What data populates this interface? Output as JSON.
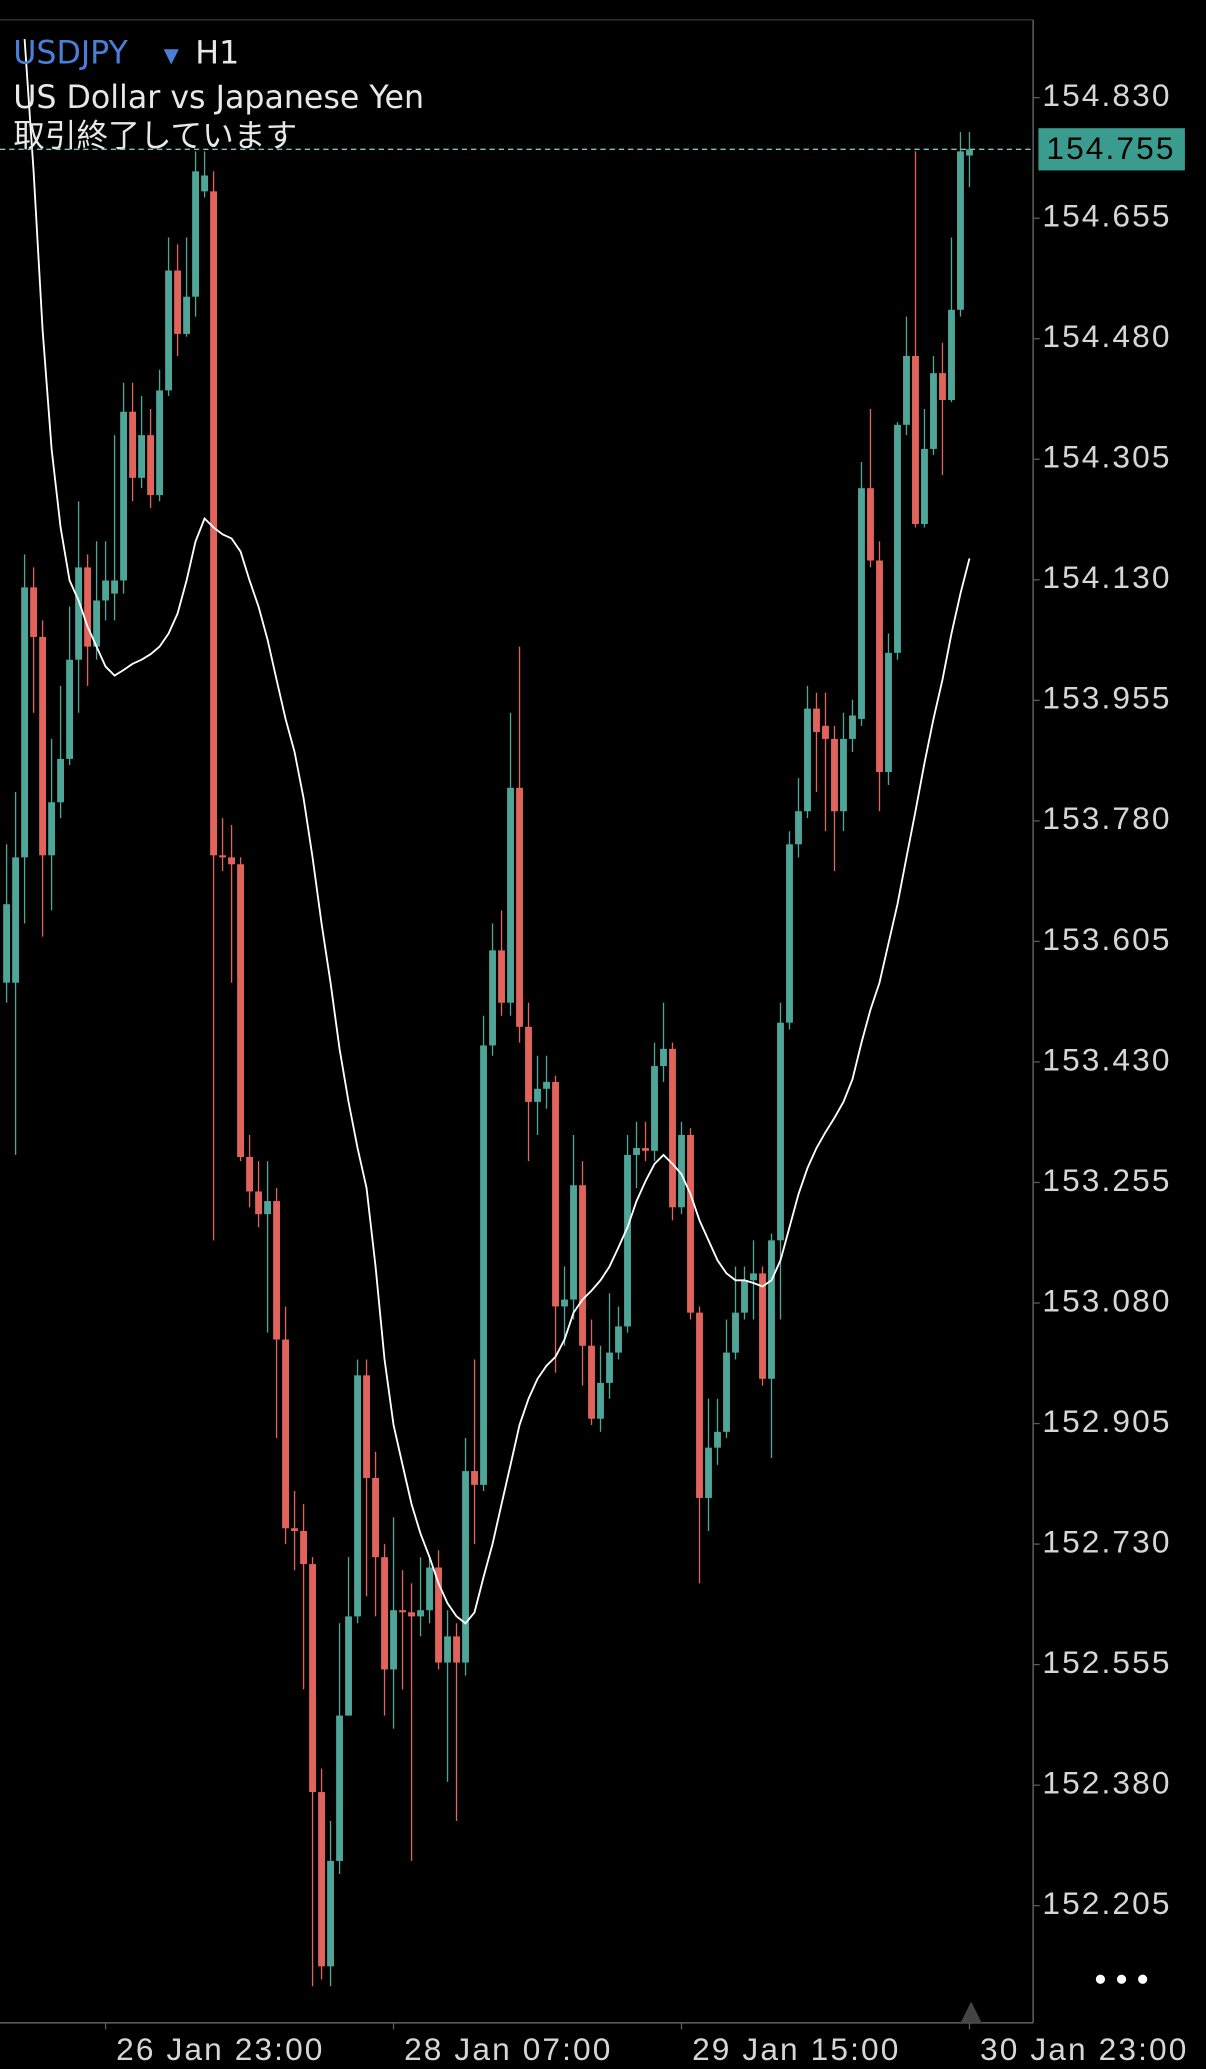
{
  "chart_data": {
    "type": "candlestick",
    "symbol": "USDJPY",
    "timeframe": "H1",
    "title": "US Dollar vs Japanese Yen",
    "subtitle": "取引終了しています",
    "categories": [
      null,
      null,
      null,
      null,
      null,
      null,
      null,
      null,
      null,
      null,
      null,
      "26 Jan 23:00",
      null,
      null,
      null,
      null,
      null,
      null,
      null,
      null,
      null,
      null,
      null,
      null,
      null,
      null,
      null,
      null,
      null,
      null,
      null,
      null,
      null,
      null,
      null,
      null,
      null,
      null,
      null,
      null,
      null,
      null,
      null,
      "28 Jan 07:00",
      null,
      null,
      null,
      null,
      null,
      null,
      null,
      null,
      null,
      null,
      null,
      null,
      null,
      null,
      null,
      null,
      null,
      null,
      null,
      null,
      null,
      null,
      null,
      null,
      null,
      null,
      null,
      null,
      null,
      null,
      null,
      "29 Jan 15:00",
      null,
      null,
      null,
      null,
      null,
      null,
      null,
      null,
      null,
      null,
      null,
      null,
      null,
      null,
      null,
      null,
      null,
      null,
      null,
      null,
      null,
      null,
      null,
      null,
      null,
      null,
      null,
      null,
      null,
      null,
      null,
      "30 Jan 23:00"
    ],
    "open": [
      153.545,
      153.545,
      153.727,
      154.119,
      154.047,
      153.73,
      153.807,
      153.87,
      154.014,
      154.148,
      154.033,
      154.1,
      154.11,
      154.129,
      154.374,
      154.278,
      154.34,
      154.253,
      154.405,
      154.579,
      154.487,
      154.541,
      154.694,
      154.694,
      153.73,
      153.727,
      153.717,
      153.292,
      153.242,
      153.209,
      153.228,
      153.027,
      152.753,
      152.749,
      152.701,
      152.37,
      152.117,
      152.27,
      152.481,
      152.625,
      152.975,
      152.826,
      152.711,
      152.548,
      152.634,
      152.631,
      152.625,
      152.634,
      152.696,
      152.558,
      152.596,
      152.558,
      152.836,
      152.816,
      153.454,
      153.592,
      153.516,
      153.828,
      153.481,
      153.372,
      153.391,
      153.401,
      153.075,
      153.085,
      153.251,
      153.018,
      152.912,
      152.964,
      153.008,
      153.046,
      153.295,
      153.305,
      153.301,
      153.424,
      153.449,
      153.219,
      153.324,
      153.066,
      152.797,
      152.87,
      152.893,
      153.008,
      153.066,
      153.113,
      153.123,
      152.97,
      153.171,
      153.487,
      153.746,
      153.794,
      153.943,
      153.918,
      153.899,
      153.794,
      153.899,
      153.928,
      154.263,
      154.158,
      153.851,
      154.024,
      154.355,
      154.455,
      154.211,
      154.32,
      154.43,
      154.391,
      154.522,
      154.746
    ],
    "high": [
      153.746,
      153.822,
      154.167,
      154.148,
      154.071,
      153.899,
      153.976,
      154.091,
      154.244,
      154.167,
      154.186,
      154.186,
      154.34,
      154.416,
      154.416,
      154.397,
      154.378,
      154.435,
      154.627,
      154.617,
      154.627,
      154.752,
      154.752,
      154.723,
      153.784,
      153.774,
      153.727,
      153.324,
      153.286,
      153.286,
      153.247,
      153.075,
      152.807,
      152.788,
      152.711,
      152.404,
      152.328,
      152.615,
      152.711,
      152.998,
      152.998,
      152.864,
      152.73,
      152.769,
      152.692,
      152.673,
      152.711,
      152.711,
      152.721,
      152.634,
      152.615,
      152.884,
      152.998,
      153.497,
      153.631,
      153.65,
      153.937,
      154.033,
      153.516,
      153.439,
      153.439,
      153.41,
      153.133,
      153.324,
      153.286,
      153.056,
      153.018,
      153.094,
      153.075,
      153.324,
      153.343,
      153.343,
      153.458,
      153.516,
      153.458,
      153.343,
      153.334,
      153.075,
      152.941,
      152.941,
      153.056,
      153.133,
      153.133,
      153.171,
      153.133,
      153.181,
      153.516,
      153.765,
      153.842,
      153.976,
      153.966,
      153.966,
      153.918,
      153.937,
      153.956,
      154.301,
      154.378,
      154.186,
      154.052,
      154.359,
      154.512,
      154.752,
      154.378,
      154.455,
      154.474,
      154.627,
      154.78,
      154.78
    ],
    "low": [
      153.516,
      153.295,
      153.631,
      153.937,
      153.612,
      153.65,
      153.784,
      153.861,
      153.937,
      153.976,
      154.014,
      154.071,
      154.071,
      154.11,
      154.244,
      154.263,
      154.234,
      154.244,
      154.397,
      154.455,
      154.483,
      154.512,
      154.685,
      153.171,
      153.707,
      153.545,
      153.286,
      153.219,
      153.19,
      153.037,
      152.884,
      152.73,
      152.692,
      152.519,
      152.088,
      152.098,
      152.088,
      152.251,
      152.481,
      152.615,
      152.654,
      152.625,
      152.481,
      152.462,
      152.519,
      152.27,
      152.596,
      152.615,
      152.548,
      152.385,
      152.328,
      152.539,
      152.73,
      152.807,
      153.439,
      153.497,
      153.497,
      153.458,
      153.286,
      153.324,
      153.362,
      152.979,
      153.018,
      153.056,
      152.96,
      152.903,
      152.893,
      152.941,
      152.998,
      153.037,
      153.247,
      153.286,
      153.286,
      153.401,
      153.2,
      153.209,
      153.056,
      152.673,
      152.749,
      152.845,
      152.884,
      152.998,
      153.056,
      153.056,
      152.96,
      152.855,
      153.056,
      153.477,
      153.727,
      153.784,
      153.822,
      153.765,
      153.707,
      153.765,
      153.88,
      153.918,
      154.148,
      153.794,
      153.832,
      154.014,
      154.34,
      154.206,
      154.206,
      154.311,
      154.282,
      154.388,
      154.512,
      154.7
    ],
    "close": [
      153.659,
      153.727,
      154.119,
      154.047,
      153.73,
      153.807,
      153.87,
      154.014,
      154.148,
      154.033,
      154.1,
      154.129,
      154.129,
      154.374,
      154.278,
      154.34,
      154.253,
      154.405,
      154.579,
      154.487,
      154.541,
      154.723,
      154.717,
      153.73,
      153.727,
      153.717,
      153.292,
      153.242,
      153.209,
      153.228,
      153.027,
      152.753,
      152.749,
      152.701,
      152.37,
      152.117,
      152.27,
      152.481,
      152.625,
      152.975,
      152.826,
      152.711,
      152.548,
      152.634,
      152.631,
      152.625,
      152.634,
      152.696,
      152.558,
      152.596,
      152.558,
      152.836,
      152.816,
      153.454,
      153.592,
      153.516,
      153.828,
      153.481,
      153.372,
      153.391,
      153.401,
      153.075,
      153.085,
      153.251,
      153.018,
      152.912,
      152.964,
      153.008,
      153.046,
      153.295,
      153.305,
      153.301,
      153.424,
      153.449,
      153.219,
      153.324,
      153.066,
      152.797,
      152.87,
      152.893,
      153.008,
      153.066,
      153.113,
      153.123,
      152.97,
      153.171,
      153.487,
      153.746,
      153.794,
      153.943,
      153.909,
      153.899,
      153.794,
      153.899,
      153.933,
      154.263,
      154.158,
      153.851,
      154.024,
      154.355,
      154.455,
      154.211,
      154.32,
      154.43,
      154.391,
      154.522,
      154.752,
      154.755
    ],
    "up_color": "#4fa597",
    "down_color": "#e0645c",
    "line": {
      "color": "#ffffff",
      "values": [
        null,
        null,
        154.915,
        154.723,
        154.493,
        154.32,
        154.206,
        154.129,
        154.1,
        154.062,
        154.033,
        154.004,
        153.991,
        153.999,
        154.008,
        154.014,
        154.022,
        154.033,
        154.052,
        154.081,
        154.129,
        154.186,
        154.219,
        154.206,
        154.196,
        154.19,
        154.171,
        154.129,
        154.091,
        154.043,
        153.985,
        153.928,
        153.88,
        153.813,
        153.727,
        153.631,
        153.545,
        153.449,
        153.372,
        153.305,
        153.247,
        153.133,
        152.998,
        152.903,
        152.845,
        152.788,
        152.745,
        152.711,
        152.673,
        152.644,
        152.625,
        152.615,
        152.631,
        152.682,
        152.73,
        152.788,
        152.845,
        152.903,
        152.941,
        152.97,
        152.989,
        153.002,
        153.027,
        153.066,
        153.085,
        153.098,
        153.113,
        153.133,
        153.161,
        153.19,
        153.228,
        153.257,
        153.282,
        153.295,
        153.282,
        153.267,
        153.238,
        153.2,
        153.171,
        153.142,
        153.123,
        153.113,
        153.113,
        153.109,
        153.104,
        153.113,
        153.142,
        153.19,
        153.238,
        153.276,
        153.305,
        153.328,
        153.349,
        153.372,
        153.405,
        153.458,
        153.506,
        153.545,
        153.602,
        153.659,
        153.727,
        153.794,
        153.864,
        153.928,
        153.985,
        154.052,
        154.11,
        154.161
      ]
    },
    "last_price": 154.755,
    "last_price_color": "#3a9c8f",
    "ylim": [
      152.035,
      154.943
    ],
    "yticks": [
      {
        "value": 154.83,
        "label": "154.830"
      },
      154.655,
      {
        "value": 154.48,
        "label": "154.480"
      },
      154.305,
      {
        "value": 154.13,
        "label": "154.130"
      },
      153.955,
      {
        "value": 153.78,
        "label": "153.780"
      },
      153.605,
      {
        "value": 153.43,
        "label": "153.430"
      },
      153.255,
      {
        "value": 153.08,
        "label": "153.080"
      },
      152.905,
      {
        "value": 152.73,
        "label": "152.730"
      },
      152.555,
      {
        "value": 152.38,
        "label": "152.380"
      },
      152.205
    ],
    "grid": false
  }
}
